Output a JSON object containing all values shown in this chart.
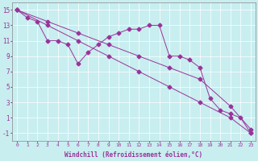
{
  "bg_color": "#c8eef0",
  "line_color": "#993399",
  "grid_color": "#ffffff",
  "xlabel": "Windchill (Refroidissement éolien,°C)",
  "ylabel_values": [
    -1,
    1,
    3,
    5,
    7,
    9,
    11,
    13,
    15
  ],
  "xlim": [
    -0.5,
    23.5
  ],
  "ylim": [
    -2,
    16
  ],
  "xtick_labels": [
    "0",
    "1",
    "2",
    "3",
    "4",
    "5",
    "6",
    "7",
    "8",
    "9",
    "10",
    "11",
    "12",
    "13",
    "14",
    "15",
    "16",
    "17",
    "18",
    "19",
    "20",
    "21",
    "22",
    "23"
  ],
  "line1_x": [
    0,
    1,
    2,
    3,
    4,
    5,
    6,
    7,
    8,
    9,
    10,
    11,
    12,
    13,
    14,
    15,
    16,
    17,
    18,
    19,
    20,
    21,
    22,
    23
  ],
  "line1_y": [
    15.0,
    14.0,
    13.5,
    11.0,
    11.0,
    10.5,
    8.0,
    9.5,
    10.5,
    11.5,
    12.0,
    12.5,
    12.5,
    13.0,
    13.0,
    9.0,
    9.0,
    8.5,
    7.5,
    3.5,
    2.0,
    1.5,
    1.0,
    -1.0
  ],
  "line2_x": [
    0,
    3,
    6,
    9,
    12,
    15,
    18,
    21,
    23
  ],
  "line2_y": [
    15.0,
    13.0,
    11.0,
    9.0,
    7.0,
    5.0,
    3.0,
    1.0,
    -1.0
  ],
  "line3_x": [
    0,
    3,
    6,
    9,
    12,
    15,
    18,
    21,
    23
  ],
  "line3_y": [
    15.0,
    13.5,
    12.0,
    10.5,
    9.0,
    7.5,
    6.0,
    2.5,
    -0.5
  ],
  "marker_size": 2.5,
  "font_family": "monospace"
}
